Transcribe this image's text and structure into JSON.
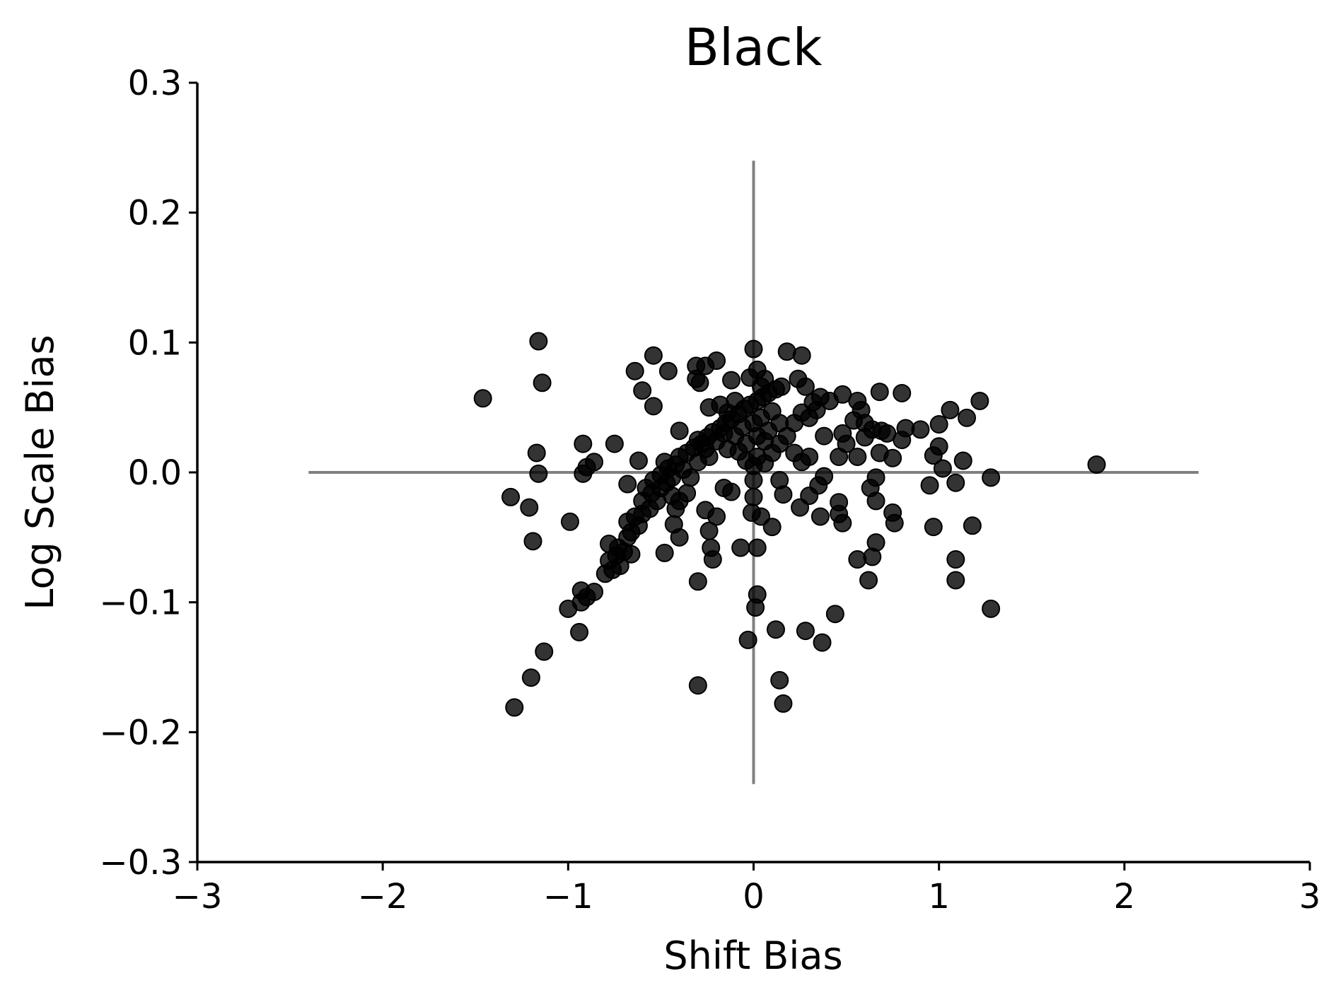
{
  "chart_data": {
    "type": "scatter",
    "title": "Black",
    "xlabel": "Shift Bias",
    "ylabel": "Log Scale Bias",
    "xlim": [
      -3,
      3
    ],
    "ylim": [
      -0.3,
      0.3
    ],
    "xticks": [
      -3,
      -2,
      -1,
      0,
      1,
      2,
      3
    ],
    "xtick_labels": [
      "−3",
      "−2",
      "−1",
      "0",
      "1",
      "2",
      "3"
    ],
    "yticks": [
      -0.3,
      -0.2,
      -0.1,
      0.0,
      0.1,
      0.2,
      0.3
    ],
    "ytick_labels": [
      "−0.3",
      "−0.2",
      "−0.1",
      "0.0",
      "0.1",
      "0.2",
      "0.3"
    ],
    "grid": false,
    "reference_lines": {
      "horizontal": {
        "y": 0,
        "x_from": -2.4,
        "x_to": 2.4
      },
      "vertical": {
        "x": 0,
        "y_from": -0.24,
        "y_to": 0.24
      }
    },
    "marker_color": "#000000",
    "reference_line_color": "#808080",
    "points": [
      {
        "x": -1.46,
        "y": 0.057
      },
      {
        "x": -1.16,
        "y": 0.101
      },
      {
        "x": -1.14,
        "y": 0.069
      },
      {
        "x": -1.17,
        "y": 0.015
      },
      {
        "x": -1.16,
        "y": -0.001
      },
      {
        "x": -1.31,
        "y": -0.019
      },
      {
        "x": -1.21,
        "y": -0.027
      },
      {
        "x": -1.19,
        "y": -0.053
      },
      {
        "x": -1.29,
        "y": -0.181
      },
      {
        "x": -1.2,
        "y": -0.158
      },
      {
        "x": -1.13,
        "y": -0.138
      },
      {
        "x": -1.0,
        "y": -0.105
      },
      {
        "x": -0.94,
        "y": -0.123
      },
      {
        "x": -0.93,
        "y": -0.1
      },
      {
        "x": -0.9,
        "y": -0.096
      },
      {
        "x": -0.86,
        "y": -0.092
      },
      {
        "x": -0.93,
        "y": -0.091
      },
      {
        "x": -0.99,
        "y": -0.038
      },
      {
        "x": -0.92,
        "y": -0.001
      },
      {
        "x": -0.9,
        "y": 0.004
      },
      {
        "x": -0.86,
        "y": 0.008
      },
      {
        "x": -0.92,
        "y": 0.022
      },
      {
        "x": -0.75,
        "y": 0.022
      },
      {
        "x": -0.8,
        "y": -0.078
      },
      {
        "x": -0.76,
        "y": -0.075
      },
      {
        "x": -0.72,
        "y": -0.072
      },
      {
        "x": -0.78,
        "y": -0.068
      },
      {
        "x": -0.74,
        "y": -0.064
      },
      {
        "x": -0.7,
        "y": -0.061
      },
      {
        "x": -0.78,
        "y": -0.055
      },
      {
        "x": -0.73,
        "y": -0.058
      },
      {
        "x": -0.66,
        "y": -0.063
      },
      {
        "x": -0.68,
        "y": -0.05
      },
      {
        "x": -0.66,
        "y": -0.046
      },
      {
        "x": -0.62,
        "y": -0.041
      },
      {
        "x": -0.68,
        "y": -0.038
      },
      {
        "x": -0.64,
        "y": -0.034
      },
      {
        "x": -0.6,
        "y": -0.032
      },
      {
        "x": -0.56,
        "y": -0.028
      },
      {
        "x": -0.52,
        "y": -0.022
      },
      {
        "x": -0.55,
        "y": -0.016
      },
      {
        "x": -0.5,
        "y": -0.012
      },
      {
        "x": -0.47,
        "y": -0.008
      },
      {
        "x": -0.44,
        "y": -0.004
      },
      {
        "x": -0.5,
        "y": -0.002
      },
      {
        "x": -0.46,
        "y": 0.003
      },
      {
        "x": -0.42,
        "y": 0.006
      },
      {
        "x": -0.48,
        "y": 0.008
      },
      {
        "x": -0.4,
        "y": 0.012
      },
      {
        "x": -0.36,
        "y": 0.015
      },
      {
        "x": -0.32,
        "y": 0.019
      },
      {
        "x": -0.28,
        "y": 0.022
      },
      {
        "x": -0.25,
        "y": 0.027
      },
      {
        "x": -0.22,
        "y": 0.031
      },
      {
        "x": -0.18,
        "y": 0.034
      },
      {
        "x": -0.15,
        "y": 0.038
      },
      {
        "x": -0.12,
        "y": 0.041
      },
      {
        "x": -0.08,
        "y": 0.045
      },
      {
        "x": -0.05,
        "y": 0.049
      },
      {
        "x": -0.02,
        "y": 0.052
      },
      {
        "x": 0.02,
        "y": 0.055
      },
      {
        "x": 0.05,
        "y": 0.058
      },
      {
        "x": 0.08,
        "y": 0.061
      },
      {
        "x": 0.12,
        "y": 0.064
      },
      {
        "x": 0.15,
        "y": 0.066
      },
      {
        "x": -0.3,
        "y": 0.025
      },
      {
        "x": -0.26,
        "y": 0.018
      },
      {
        "x": -0.2,
        "y": 0.024
      },
      {
        "x": -0.16,
        "y": 0.03
      },
      {
        "x": -0.1,
        "y": 0.028
      },
      {
        "x": -0.06,
        "y": 0.035
      },
      {
        "x": 0.0,
        "y": 0.038
      },
      {
        "x": 0.04,
        "y": 0.042
      },
      {
        "x": 0.1,
        "y": 0.047
      },
      {
        "x": -0.38,
        "y": 0.002
      },
      {
        "x": -0.34,
        "y": -0.004
      },
      {
        "x": -0.3,
        "y": 0.008
      },
      {
        "x": -0.24,
        "y": 0.012
      },
      {
        "x": -0.14,
        "y": 0.018
      },
      {
        "x": -0.04,
        "y": 0.022
      },
      {
        "x": 0.02,
        "y": 0.028
      },
      {
        "x": 0.08,
        "y": 0.032
      },
      {
        "x": 0.14,
        "y": 0.038
      },
      {
        "x": -0.58,
        "y": -0.012
      },
      {
        "x": -0.54,
        "y": -0.006
      },
      {
        "x": -0.6,
        "y": -0.022
      },
      {
        "x": -0.44,
        "y": -0.018
      },
      {
        "x": -0.4,
        "y": -0.022
      },
      {
        "x": -0.36,
        "y": -0.016
      },
      {
        "x": -0.42,
        "y": -0.028
      },
      {
        "x": -0.62,
        "y": 0.009
      },
      {
        "x": -0.68,
        "y": -0.009
      },
      {
        "x": -0.54,
        "y": 0.09
      },
      {
        "x": -0.64,
        "y": 0.078
      },
      {
        "x": -0.6,
        "y": 0.063
      },
      {
        "x": -0.54,
        "y": 0.051
      },
      {
        "x": -0.46,
        "y": 0.078
      },
      {
        "x": -0.31,
        "y": 0.082
      },
      {
        "x": -0.26,
        "y": 0.082
      },
      {
        "x": -0.2,
        "y": 0.086
      },
      {
        "x": -0.31,
        "y": 0.072
      },
      {
        "x": -0.29,
        "y": 0.069
      },
      {
        "x": -0.24,
        "y": 0.05
      },
      {
        "x": -0.4,
        "y": 0.032
      },
      {
        "x": -0.12,
        "y": 0.071
      },
      {
        "x": -0.02,
        "y": 0.073
      },
      {
        "x": 0.0,
        "y": 0.095
      },
      {
        "x": 0.02,
        "y": 0.079
      },
      {
        "x": 0.06,
        "y": 0.072
      },
      {
        "x": 0.18,
        "y": 0.093
      },
      {
        "x": 0.26,
        "y": 0.09
      },
      {
        "x": 0.24,
        "y": 0.072
      },
      {
        "x": 0.28,
        "y": 0.066
      },
      {
        "x": 0.32,
        "y": 0.054
      },
      {
        "x": 0.36,
        "y": 0.058
      },
      {
        "x": 0.41,
        "y": 0.055
      },
      {
        "x": 0.26,
        "y": 0.046
      },
      {
        "x": 0.3,
        "y": 0.042
      },
      {
        "x": 0.34,
        "y": 0.048
      },
      {
        "x": 0.22,
        "y": 0.038
      },
      {
        "x": 0.18,
        "y": 0.028
      },
      {
        "x": 0.14,
        "y": 0.022
      },
      {
        "x": 0.1,
        "y": 0.015
      },
      {
        "x": 0.22,
        "y": 0.015
      },
      {
        "x": 0.26,
        "y": 0.008
      },
      {
        "x": 0.3,
        "y": 0.012
      },
      {
        "x": 0.06,
        "y": 0.007
      },
      {
        "x": 0.0,
        "y": 0.005
      },
      {
        "x": -0.04,
        "y": 0.009
      },
      {
        "x": 0.46,
        "y": 0.012
      },
      {
        "x": 0.5,
        "y": 0.022
      },
      {
        "x": 0.48,
        "y": 0.03
      },
      {
        "x": 0.38,
        "y": 0.028
      },
      {
        "x": 0.48,
        "y": 0.06
      },
      {
        "x": 0.56,
        "y": 0.055
      },
      {
        "x": 0.58,
        "y": 0.048
      },
      {
        "x": 0.54,
        "y": 0.04
      },
      {
        "x": 0.6,
        "y": 0.038
      },
      {
        "x": 0.6,
        "y": 0.027
      },
      {
        "x": 0.64,
        "y": 0.033
      },
      {
        "x": 0.68,
        "y": 0.062
      },
      {
        "x": 0.72,
        "y": 0.03
      },
      {
        "x": 0.69,
        "y": 0.032
      },
      {
        "x": 0.75,
        "y": 0.011
      },
      {
        "x": 0.68,
        "y": 0.015
      },
      {
        "x": 0.56,
        "y": 0.012
      },
      {
        "x": 0.66,
        "y": -0.004
      },
      {
        "x": 0.63,
        "y": -0.012
      },
      {
        "x": 0.66,
        "y": -0.022
      },
      {
        "x": 0.8,
        "y": 0.061
      },
      {
        "x": 0.82,
        "y": 0.034
      },
      {
        "x": 0.8,
        "y": 0.025
      },
      {
        "x": 0.9,
        "y": 0.033
      },
      {
        "x": 1.0,
        "y": 0.037
      },
      {
        "x": 0.97,
        "y": 0.013
      },
      {
        "x": 1.0,
        "y": 0.02
      },
      {
        "x": 1.02,
        "y": 0.003
      },
      {
        "x": 0.95,
        "y": -0.01
      },
      {
        "x": 1.06,
        "y": 0.048
      },
      {
        "x": 1.15,
        "y": 0.042
      },
      {
        "x": 1.22,
        "y": 0.055
      },
      {
        "x": 1.13,
        "y": 0.009
      },
      {
        "x": 1.09,
        "y": -0.008
      },
      {
        "x": 1.28,
        "y": -0.004
      },
      {
        "x": 0.75,
        "y": -0.031
      },
      {
        "x": 0.76,
        "y": -0.039
      },
      {
        "x": 0.97,
        "y": -0.042
      },
      {
        "x": 1.18,
        "y": -0.041
      },
      {
        "x": 1.09,
        "y": -0.067
      },
      {
        "x": 1.09,
        "y": -0.083
      },
      {
        "x": 1.28,
        "y": -0.105
      },
      {
        "x": 1.85,
        "y": 0.006
      },
      {
        "x": 0.46,
        "y": -0.023
      },
      {
        "x": 0.46,
        "y": -0.032
      },
      {
        "x": 0.48,
        "y": -0.039
      },
      {
        "x": 0.36,
        "y": -0.034
      },
      {
        "x": 0.35,
        "y": -0.01
      },
      {
        "x": 0.38,
        "y": -0.003
      },
      {
        "x": 0.25,
        "y": -0.027
      },
      {
        "x": 0.3,
        "y": -0.018
      },
      {
        "x": 0.16,
        "y": -0.017
      },
      {
        "x": 0.14,
        "y": -0.006
      },
      {
        "x": 0.04,
        "y": -0.034
      },
      {
        "x": -0.01,
        "y": -0.031
      },
      {
        "x": 0.0,
        "y": -0.019
      },
      {
        "x": 0.0,
        "y": -0.006
      },
      {
        "x": 0.1,
        "y": -0.042
      },
      {
        "x": 0.56,
        "y": -0.067
      },
      {
        "x": 0.66,
        "y": -0.054
      },
      {
        "x": 0.64,
        "y": -0.065
      },
      {
        "x": 0.62,
        "y": -0.083
      },
      {
        "x": 0.44,
        "y": -0.109
      },
      {
        "x": 0.28,
        "y": -0.122
      },
      {
        "x": 0.37,
        "y": -0.131
      },
      {
        "x": 0.12,
        "y": -0.121
      },
      {
        "x": 0.02,
        "y": -0.094
      },
      {
        "x": 0.01,
        "y": -0.104
      },
      {
        "x": -0.03,
        "y": -0.129
      },
      {
        "x": 0.02,
        "y": -0.058
      },
      {
        "x": -0.07,
        "y": -0.058
      },
      {
        "x": 0.14,
        "y": -0.16
      },
      {
        "x": 0.16,
        "y": -0.178
      },
      {
        "x": -0.3,
        "y": -0.164
      },
      {
        "x": -0.3,
        "y": -0.084
      },
      {
        "x": -0.26,
        "y": -0.029
      },
      {
        "x": -0.2,
        "y": -0.034
      },
      {
        "x": -0.24,
        "y": -0.045
      },
      {
        "x": -0.23,
        "y": -0.058
      },
      {
        "x": -0.22,
        "y": -0.067
      },
      {
        "x": -0.4,
        "y": -0.05
      },
      {
        "x": -0.43,
        "y": -0.04
      },
      {
        "x": -0.48,
        "y": -0.062
      },
      {
        "x": -0.16,
        "y": -0.012
      },
      {
        "x": -0.12,
        "y": -0.015
      },
      {
        "x": -0.08,
        "y": 0.016
      },
      {
        "x": 0.06,
        "y": 0.024
      },
      {
        "x": 0.02,
        "y": 0.012
      },
      {
        "x": -0.18,
        "y": 0.052
      },
      {
        "x": -0.14,
        "y": 0.046
      },
      {
        "x": -0.1,
        "y": 0.055
      },
      {
        "x": 0.04,
        "y": 0.066
      }
    ]
  }
}
